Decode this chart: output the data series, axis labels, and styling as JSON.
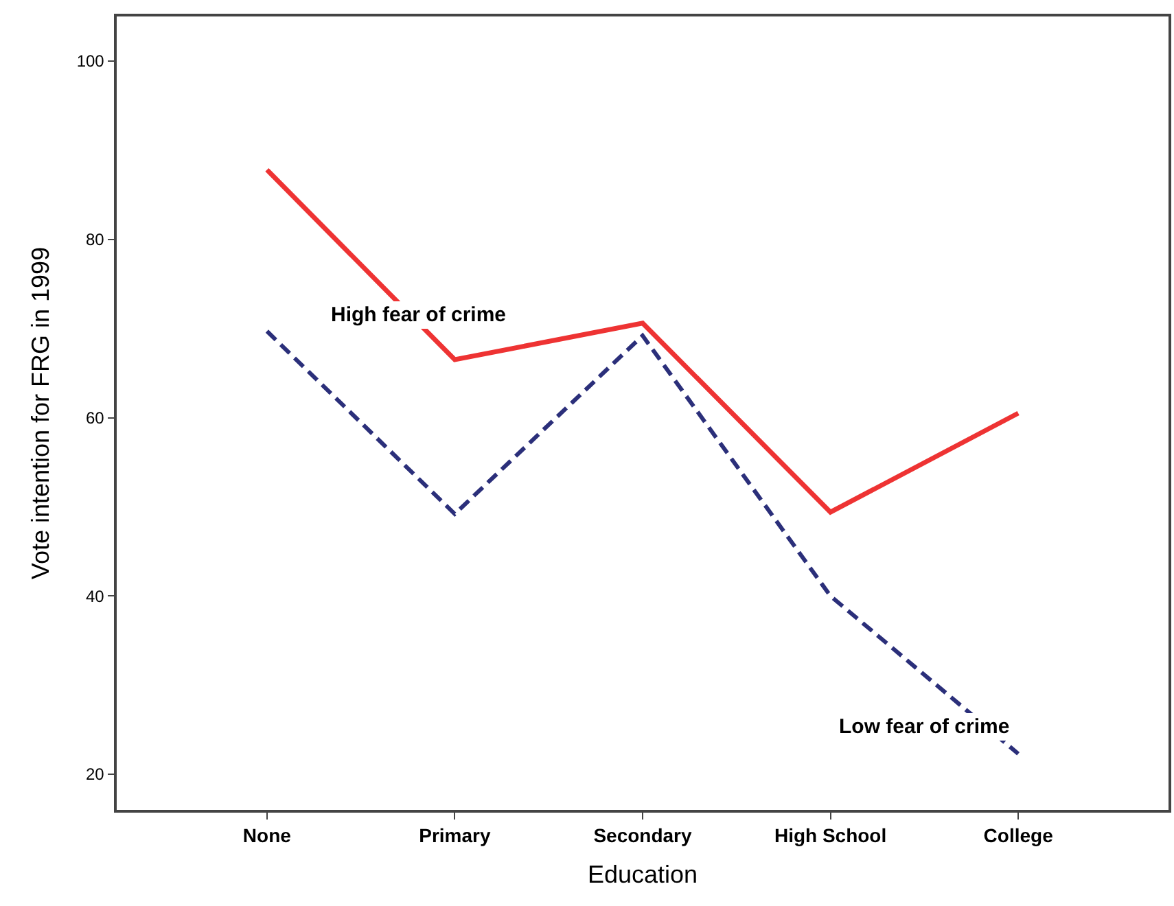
{
  "chart_data": {
    "type": "line",
    "xlabel": "Education",
    "ylabel": "Vote intention for FRG in 1999",
    "categories": [
      "None",
      "Primary",
      "Secondary",
      "High School",
      "College"
    ],
    "series": [
      {
        "name": "High fear of crime",
        "color": "#ee3333",
        "line_style": "solid",
        "values": [
          87.8,
          66.5,
          70.6,
          49.4,
          60.5
        ]
      },
      {
        "name": "Low fear of crime",
        "color": "#2b2f7a",
        "line_style": "dashed",
        "values": [
          69.7,
          49.2,
          69.2,
          40,
          22.3
        ]
      }
    ],
    "ylim": [
      16,
      105
    ],
    "yticks": [
      20,
      40,
      60,
      80,
      100
    ],
    "grid": false,
    "legend": false,
    "marker": "none"
  }
}
